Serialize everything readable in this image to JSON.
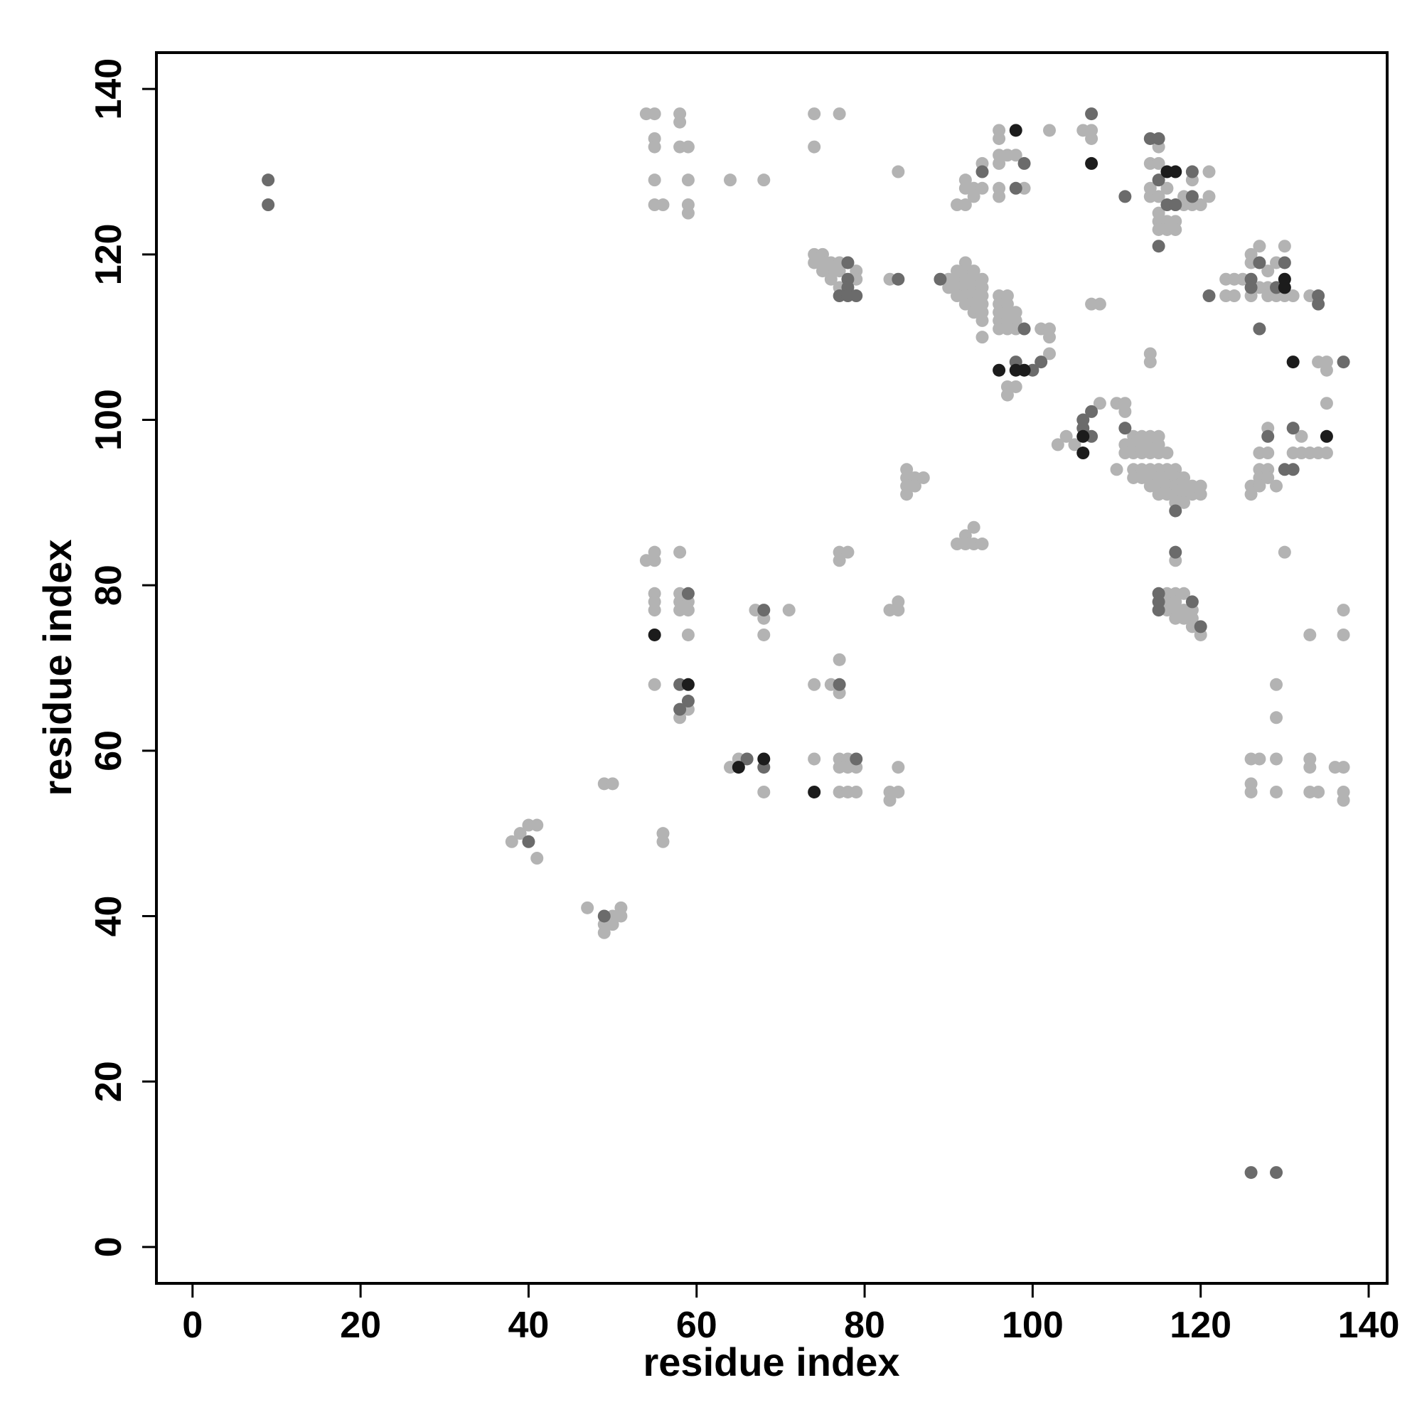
{
  "chart_data": {
    "type": "scatter",
    "x_label": "residue index",
    "y_label": "residue index",
    "xlim": [
      -4.3,
      142.2
    ],
    "ylim": [
      -4.4,
      144.4
    ],
    "xticks": [
      0,
      20,
      40,
      60,
      80,
      100,
      120,
      140
    ],
    "yticks": [
      0,
      20,
      40,
      60,
      80,
      100,
      120,
      140
    ],
    "series": [
      {
        "color": "#b3b3b3",
        "x": [
          54,
          55,
          55,
          55,
          55,
          55,
          56,
          58,
          58,
          58,
          59,
          59,
          59,
          59,
          64,
          68,
          74,
          77,
          74,
          84,
          91,
          92,
          92,
          92,
          93,
          93,
          94,
          94,
          96,
          96,
          96,
          96,
          97,
          98,
          96,
          96,
          99,
          102,
          106,
          107,
          107,
          114,
          115,
          115,
          114,
          114,
          115,
          116,
          115,
          115,
          116,
          117,
          116,
          117,
          115,
          118,
          118,
          119,
          120,
          119,
          121,
          121,
          117,
          74,
          75,
          74,
          75,
          76,
          76,
          77,
          77,
          78,
          75,
          76,
          77,
          79,
          79,
          83,
          90,
          90,
          91,
          91,
          91,
          91,
          92,
          92,
          92,
          92,
          92,
          92,
          93,
          93,
          93,
          93,
          93,
          93,
          94,
          94,
          94,
          94,
          94,
          94,
          94,
          96,
          96,
          96,
          96,
          96,
          97,
          97,
          97,
          97,
          97,
          98,
          98,
          98,
          97,
          97,
          98,
          101,
          102,
          102,
          102,
          107,
          108,
          123,
          124,
          123,
          124,
          125,
          126,
          126,
          126,
          127,
          127,
          128,
          128,
          128,
          129,
          129,
          130,
          130,
          131,
          133,
          134,
          135,
          135,
          114,
          114,
          135,
          103,
          104,
          105,
          108,
          110,
          111,
          111,
          110,
          111,
          111,
          112,
          112,
          112,
          113,
          113,
          113,
          114,
          114,
          114,
          115,
          115,
          115,
          116,
          112,
          112,
          113,
          113,
          114,
          114,
          114,
          115,
          115,
          115,
          115,
          116,
          116,
          116,
          116,
          117,
          117,
          117,
          117,
          117,
          118,
          118,
          118,
          118,
          119,
          119,
          120,
          120,
          126,
          126,
          127,
          127,
          127,
          127,
          128,
          128,
          128,
          128,
          129,
          131,
          132,
          132,
          133,
          134,
          135,
          130,
          85,
          85,
          85,
          85,
          86,
          86,
          87,
          91,
          92,
          92,
          93,
          93,
          94,
          117,
          116,
          116,
          116,
          117,
          117,
          117,
          117,
          118,
          118,
          118,
          119,
          119,
          119,
          120,
          54,
          55,
          55,
          55,
          55,
          55,
          58,
          58,
          58,
          58,
          59,
          59,
          59,
          55,
          58,
          59,
          67,
          68,
          68,
          71,
          64,
          65,
          68,
          74,
          76,
          77,
          77,
          77,
          77,
          78,
          74,
          77,
          77,
          78,
          78,
          77,
          78,
          79,
          79,
          83,
          84,
          84,
          83,
          84,
          83,
          84,
          49,
          50,
          56,
          56,
          38,
          39,
          40,
          41,
          41,
          47,
          50,
          51,
          51,
          49,
          49,
          50,
          126,
          127,
          126,
          126,
          129,
          129,
          129,
          129,
          133,
          133,
          133,
          134,
          136,
          137,
          137,
          137,
          137,
          137,
          133
        ],
        "y": [
          137,
          137,
          134,
          133,
          129,
          126,
          126,
          137,
          136,
          133,
          133,
          129,
          126,
          125,
          129,
          129,
          137,
          137,
          133,
          130,
          126,
          126,
          129,
          128,
          127,
          128,
          128,
          131,
          135,
          134,
          132,
          131,
          132,
          132,
          128,
          127,
          128,
          135,
          135,
          135,
          134,
          131,
          131,
          133,
          128,
          127,
          127,
          128,
          125,
          124,
          124,
          124,
          123,
          123,
          123,
          127,
          126,
          126,
          126,
          129,
          130,
          127,
          126,
          120,
          120,
          119,
          119,
          119,
          118,
          118,
          119,
          119,
          118,
          117,
          116,
          118,
          117,
          117,
          117,
          116,
          118,
          117,
          116,
          115,
          119,
          118,
          117,
          116,
          115,
          114,
          118,
          117,
          116,
          115,
          114,
          113,
          117,
          116,
          115,
          114,
          113,
          112,
          110,
          115,
          114,
          113,
          112,
          111,
          115,
          114,
          113,
          112,
          111,
          113,
          112,
          111,
          104,
          103,
          104,
          111,
          111,
          110,
          108,
          114,
          114,
          117,
          117,
          115,
          115,
          117,
          120,
          119,
          115,
          121,
          116,
          118,
          116,
          115,
          119,
          115,
          121,
          115,
          115,
          115,
          107,
          107,
          106,
          108,
          107,
          102,
          97,
          98,
          97,
          102,
          102,
          102,
          101,
          94,
          97,
          96,
          98,
          97,
          96,
          98,
          97,
          96,
          98,
          97,
          96,
          98,
          97,
          96,
          96,
          94,
          93,
          94,
          93,
          94,
          93,
          92,
          94,
          93,
          92,
          91,
          94,
          93,
          92,
          91,
          94,
          93,
          92,
          91,
          90,
          93,
          92,
          91,
          90,
          92,
          91,
          92,
          91,
          92,
          91,
          96,
          94,
          93,
          92,
          96,
          94,
          93,
          99,
          92,
          96,
          98,
          96,
          96,
          96,
          96,
          84,
          94,
          93,
          92,
          91,
          93,
          92,
          93,
          85,
          86,
          85,
          87,
          85,
          85,
          83,
          79,
          78,
          77,
          79,
          78,
          77,
          76,
          79,
          77,
          76,
          77,
          76,
          75,
          74,
          83,
          84,
          83,
          79,
          78,
          77,
          84,
          79,
          78,
          77,
          78,
          77,
          74,
          68,
          64,
          65,
          77,
          76,
          74,
          77,
          58,
          59,
          55,
          68,
          68,
          71,
          67,
          84,
          83,
          84,
          59,
          59,
          58,
          59,
          58,
          55,
          55,
          55,
          58,
          77,
          78,
          77,
          55,
          55,
          54,
          58,
          56,
          56,
          50,
          49,
          49,
          50,
          51,
          51,
          47,
          41,
          40,
          41,
          40,
          39,
          38,
          39,
          59,
          59,
          56,
          55,
          68,
          64,
          59,
          55,
          59,
          58,
          55,
          55,
          58,
          58,
          55,
          54,
          77,
          74,
          74
        ]
      },
      {
        "color": "#6b6b6b",
        "x": [
          9,
          9,
          115,
          114,
          115,
          99,
          98,
          94,
          107,
          111,
          115,
          116,
          117,
          119,
          119,
          78,
          78,
          78,
          77,
          78,
          79,
          84,
          89,
          99,
          98,
          100,
          101,
          121,
          126,
          126,
          127,
          127,
          129,
          130,
          134,
          134,
          137,
          106,
          106,
          107,
          107,
          111,
          117,
          128,
          131,
          130,
          131,
          117,
          115,
          115,
          115,
          119,
          120,
          59,
          58,
          58,
          59,
          68,
          68,
          66,
          77,
          79,
          126,
          129,
          40,
          49
        ],
        "y": [
          129,
          126,
          121,
          134,
          134,
          131,
          128,
          130,
          137,
          127,
          129,
          126,
          126,
          130,
          127,
          119,
          117,
          116,
          115,
          115,
          115,
          117,
          117,
          111,
          107,
          106,
          107,
          115,
          117,
          116,
          119,
          111,
          116,
          119,
          115,
          114,
          107,
          100,
          99,
          101,
          98,
          99,
          89,
          98,
          99,
          94,
          94,
          84,
          79,
          78,
          77,
          78,
          75,
          79,
          68,
          65,
          66,
          77,
          58,
          59,
          68,
          59,
          9,
          9,
          49,
          40
        ]
      },
      {
        "color": "#1c1c1c",
        "x": [
          116,
          117,
          107,
          98,
          96,
          98,
          99,
          130,
          130,
          131,
          106,
          106,
          135,
          55,
          59,
          65,
          68,
          74
        ],
        "y": [
          130,
          130,
          131,
          135,
          106,
          106,
          106,
          117,
          116,
          107,
          98,
          96,
          98,
          74,
          68,
          58,
          59,
          55
        ]
      }
    ]
  }
}
